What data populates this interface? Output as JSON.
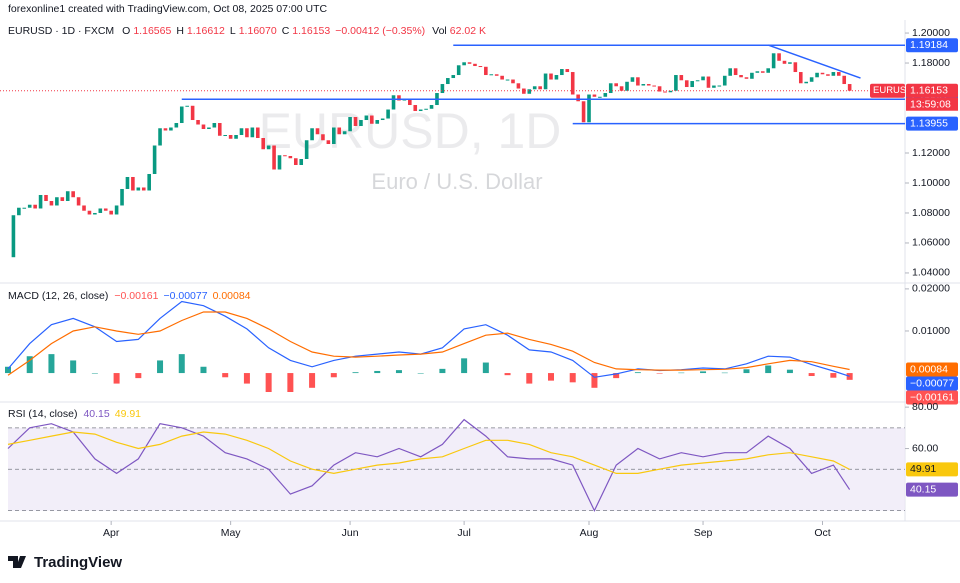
{
  "header": {
    "credit": "forexonline1 created with TradingView.com, Oct 08, 2025 07:00 UTC",
    "symbol": "EURUSD · 1D · FXCM",
    "ohlc": [
      [
        "O",
        "1.16565"
      ],
      [
        "H",
        "1.16612"
      ],
      [
        "L",
        "1.16070"
      ],
      [
        "C",
        "1.16153"
      ]
    ],
    "change": "−0.00412 (−0.35%)",
    "vol_label": "Vol",
    "vol": "62.02 K"
  },
  "chart_data": [
    {
      "type": "candlestick",
      "title": "EURUSD, 1D",
      "subtitle": "Euro / U.S. Dollar",
      "up_color": "#089981",
      "down_color": "#f23645",
      "close": [
        1.0505,
        1.0785,
        1.0835,
        1.0835,
        1.0855,
        1.083,
        1.092,
        1.088,
        1.085,
        1.0905,
        1.088,
        1.0945,
        1.0905,
        1.085,
        1.0815,
        1.079,
        1.08,
        1.083,
        1.0815,
        1.079,
        1.085,
        1.096,
        1.104,
        1.095,
        1.097,
        1.095,
        1.106,
        1.125,
        1.1365,
        1.135,
        1.137,
        1.14,
        1.151,
        1.1515,
        1.142,
        1.139,
        1.136,
        1.137,
        1.14,
        1.1315,
        1.132,
        1.1295,
        1.132,
        1.1365,
        1.1305,
        1.137,
        1.13,
        1.1225,
        1.125,
        1.109,
        1.1185,
        1.118,
        1.1165,
        1.112,
        1.116,
        1.1285,
        1.1365,
        1.1325,
        1.1285,
        1.126,
        1.137,
        1.1325,
        1.1345,
        1.144,
        1.138,
        1.142,
        1.145,
        1.1395,
        1.142,
        1.143,
        1.149,
        1.1585,
        1.155,
        1.156,
        1.152,
        1.148,
        1.149,
        1.1495,
        1.152,
        1.16,
        1.166,
        1.17,
        1.172,
        1.1785,
        1.1805,
        1.1795,
        1.178,
        1.1775,
        1.172,
        1.1725,
        1.1715,
        1.169,
        1.169,
        1.1665,
        1.163,
        1.1595,
        1.1625,
        1.1645,
        1.1625,
        1.173,
        1.169,
        1.172,
        1.176,
        1.174,
        1.159,
        1.1545,
        1.1405,
        1.159,
        1.1575,
        1.1575,
        1.16,
        1.1665,
        1.1645,
        1.1615,
        1.1675,
        1.1705,
        1.165,
        1.166,
        1.165,
        1.1645,
        1.161,
        1.1605,
        1.1615,
        1.172,
        1.1685,
        1.164,
        1.168,
        1.1685,
        1.171,
        1.1635,
        1.165,
        1.165,
        1.1715,
        1.1765,
        1.172,
        1.1705,
        1.1695,
        1.1735,
        1.1745,
        1.1735,
        1.1765,
        1.1865,
        1.1815,
        1.1795,
        1.1805,
        1.174,
        1.1665,
        1.1675,
        1.1705,
        1.1735,
        1.1725,
        1.1715,
        1.174,
        1.1715,
        1.166,
        1.16153
      ],
      "ylim": [
        1.0333,
        1.2067
      ],
      "yticks": [
        {
          "value": 1.2,
          "label": "1.20000"
        },
        {
          "value": 1.18,
          "label": "1.18000"
        },
        {
          "value": 1.12,
          "label": "1.12000"
        },
        {
          "value": 1.1,
          "label": "1.10000"
        },
        {
          "value": 1.08,
          "label": "1.08000"
        },
        {
          "value": 1.06,
          "label": "1.06000"
        },
        {
          "value": 1.04,
          "label": "1.04000"
        }
      ],
      "xticks": [
        {
          "value": 19,
          "label": "Apr"
        },
        {
          "value": 41,
          "label": "May"
        },
        {
          "value": 63,
          "label": "Jun"
        },
        {
          "value": 84,
          "label": "Jul"
        },
        {
          "value": 107,
          "label": "Aug"
        },
        {
          "value": 128,
          "label": "Sep"
        },
        {
          "value": 150,
          "label": "Oct"
        }
      ],
      "levels": [
        {
          "value": 1.19184,
          "from": 82
        },
        {
          "value": 1.15581,
          "from": 32
        },
        {
          "value": 1.13955,
          "from": 104
        }
      ],
      "trendline": {
        "x": [
          140,
          157
        ],
        "y": [
          1.192,
          1.17
        ]
      },
      "symbol": "EURUSD",
      "countdown": "13:59:08"
    },
    {
      "type": "macd",
      "title": "MACD (12, 26, close)",
      "x": [
        0,
        4,
        8,
        12,
        16,
        20,
        24,
        28,
        32,
        36,
        40,
        44,
        48,
        52,
        56,
        60,
        64,
        68,
        72,
        76,
        80,
        84,
        88,
        92,
        96,
        100,
        104,
        108,
        112,
        116,
        120,
        124,
        128,
        132,
        136,
        140,
        144,
        148,
        152,
        155
      ],
      "ylim": [
        -0.0064,
        0.0214
      ],
      "yticks": [
        {
          "value": 0.02,
          "label": "0.02000"
        },
        {
          "value": 0.01,
          "label": "0.01000"
        }
      ],
      "series": [
        {
          "kind": "histogram",
          "color": "#26a69a",
          "down_color": "#ff5252",
          "last_label": "−0.00161",
          "values": [
            0.0015,
            0.004,
            0.0045,
            0.003,
            0,
            -0.0025,
            -0.0012,
            0.003,
            0.0045,
            0.0015,
            -0.001,
            -0.0025,
            -0.0045,
            -0.0045,
            -0.0035,
            -0.001,
            0.0002,
            0.0005,
            0.0007,
            0,
            0.001,
            0.0035,
            0.0025,
            -0.0005,
            -0.0025,
            -0.0018,
            -0.0022,
            -0.0035,
            -0.0012,
            0.0002,
            -0.0001,
            0.0001,
            0.0004,
            0.0001,
            0.0009,
            0.0018,
            0.0008,
            -0.0007,
            -0.0011,
            -0.00161
          ]
        },
        {
          "kind": "line",
          "color": "#2962ff",
          "last_label": "−0.00077",
          "values": [
            0.001,
            0.007,
            0.0115,
            0.013,
            0.011,
            0.0075,
            0.008,
            0.013,
            0.017,
            0.016,
            0.0135,
            0.0105,
            0.006,
            0.003,
            0.0015,
            0.003,
            0.004,
            0.0045,
            0.005,
            0.0045,
            0.006,
            0.0105,
            0.0115,
            0.009,
            0.0055,
            0.005,
            0.003,
            -0.001,
            -0.0002,
            0.001,
            0.0006,
            0.0008,
            0.0012,
            0.001,
            0.0022,
            0.004,
            0.0038,
            0.002,
            0.0005,
            -0.00077
          ]
        },
        {
          "kind": "line",
          "color": "#ff6d00",
          "last_label": "0.00084",
          "values": [
            -0.0005,
            0.003,
            0.007,
            0.01,
            0.011,
            0.01,
            0.0092,
            0.01,
            0.0125,
            0.0145,
            0.0145,
            0.013,
            0.0105,
            0.0075,
            0.005,
            0.004,
            0.0038,
            0.004,
            0.0043,
            0.0045,
            0.005,
            0.007,
            0.009,
            0.0095,
            0.008,
            0.0068,
            0.0052,
            0.0025,
            0.001,
            0.0008,
            0.0007,
            0.0007,
            0.0008,
            0.0009,
            0.0013,
            0.0022,
            0.003,
            0.0027,
            0.0016,
            0.00084
          ]
        }
      ]
    },
    {
      "type": "rsi",
      "title": "RSI (14, close)",
      "x": [
        0,
        4,
        8,
        12,
        16,
        20,
        24,
        28,
        32,
        36,
        40,
        44,
        48,
        52,
        56,
        60,
        64,
        68,
        72,
        76,
        80,
        84,
        88,
        92,
        96,
        100,
        104,
        108,
        112,
        116,
        120,
        124,
        128,
        132,
        136,
        140,
        144,
        148,
        152,
        155
      ],
      "ylim": [
        25,
        82
      ],
      "yticks": [
        {
          "value": 80,
          "label": "80.00"
        },
        {
          "value": 60,
          "label": "60.00"
        }
      ],
      "levels": [
        70,
        50,
        30
      ],
      "band_color": "#ede7f6",
      "series": [
        {
          "color": "#7e57c2",
          "last_label": "40.15",
          "values": [
            60,
            70,
            72,
            68,
            55,
            48,
            55,
            72,
            70,
            66,
            58,
            55,
            50,
            38,
            42,
            52,
            58,
            56,
            60,
            56,
            62,
            74,
            66,
            56,
            55,
            55,
            52,
            30,
            52,
            60,
            55,
            58,
            56,
            58,
            58,
            66,
            60,
            48,
            52,
            40.15
          ]
        },
        {
          "color": "#f9c80e",
          "last_label": "49.91",
          "values": [
            62,
            64,
            66,
            68,
            67,
            63,
            60,
            62,
            66,
            68,
            67,
            64,
            60,
            54,
            50,
            48,
            50,
            52,
            53,
            55,
            56,
            60,
            64,
            64,
            62,
            58,
            56,
            52,
            48,
            48,
            50,
            52,
            53,
            54,
            55,
            57,
            58,
            56,
            54,
            49.91
          ]
        }
      ]
    }
  ],
  "footer": {
    "brand": "TradingView"
  }
}
